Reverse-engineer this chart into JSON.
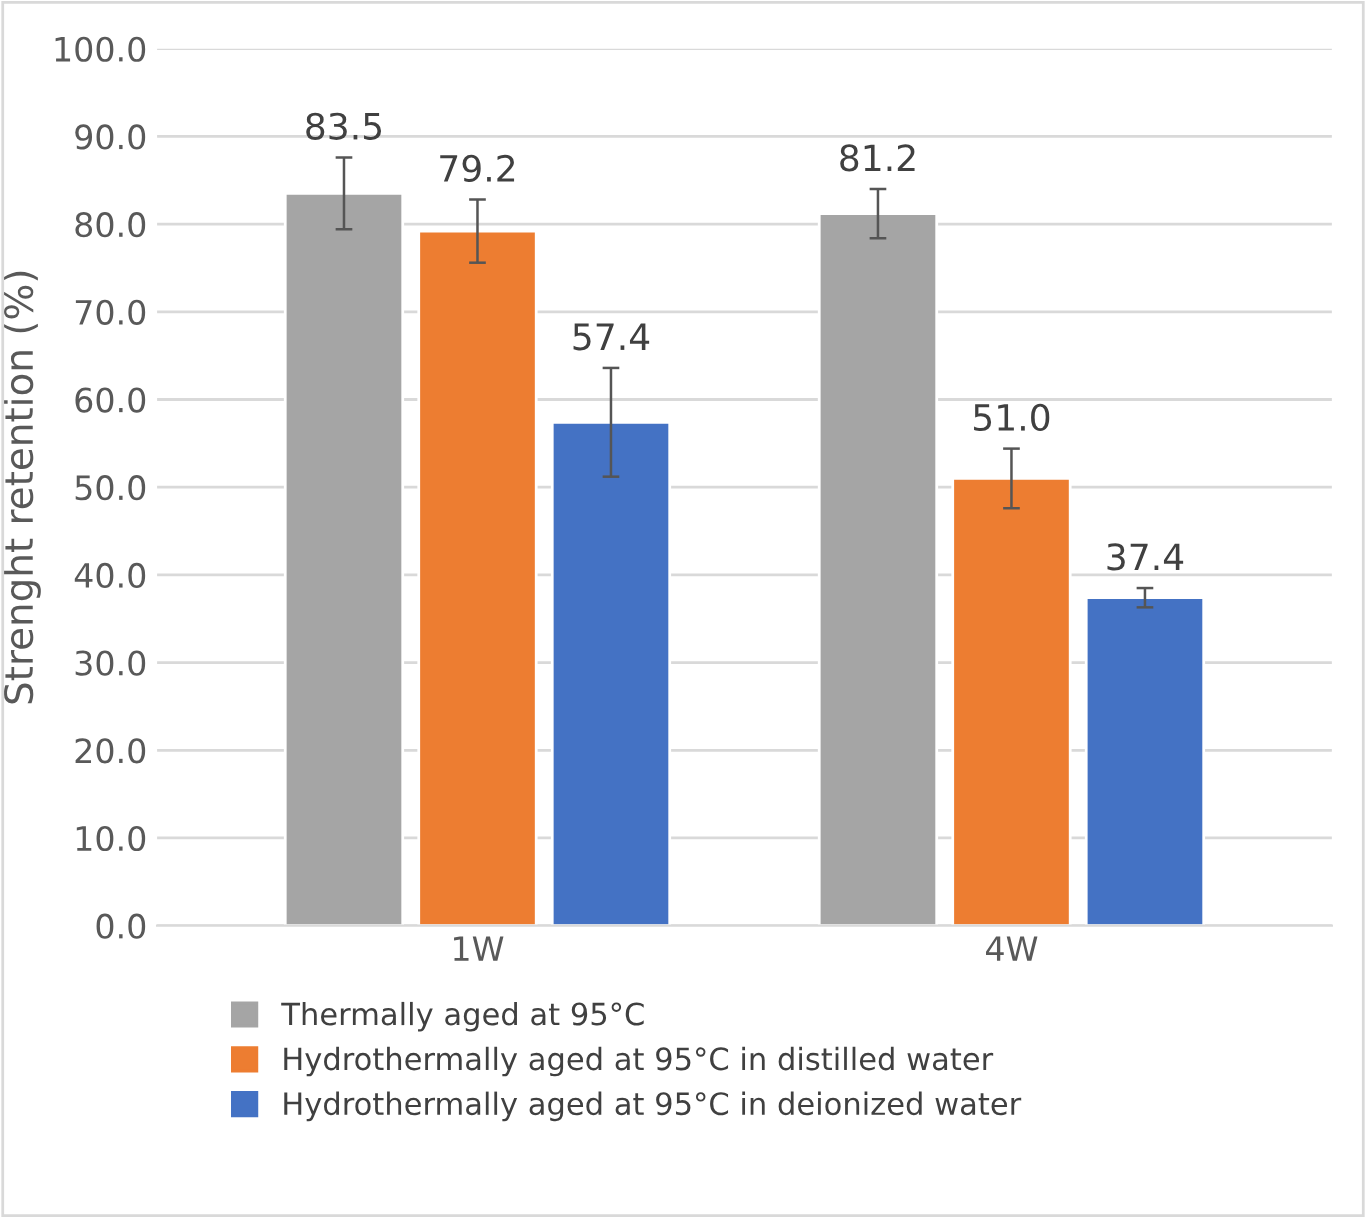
{
  "chart_data": {
    "type": "bar",
    "ylabel": "Strenght retention (%)",
    "categories": [
      "1W",
      "4W"
    ],
    "series": [
      {
        "name": "Thermally aged at 95°C",
        "color": "#a5a5a5",
        "values": [
          83.5,
          81.2
        ],
        "errors": [
          4.1,
          2.8
        ]
      },
      {
        "name": "Hydrothermally aged at 95°C in distilled water",
        "color": "#ed7d31",
        "values": [
          79.2,
          51.0
        ],
        "errors": [
          3.6,
          3.4
        ]
      },
      {
        "name": "Hydrothermally aged at 95°C in deionized water",
        "color": "#4472c4",
        "values": [
          57.4,
          37.4
        ],
        "errors": [
          6.2,
          1.1
        ]
      }
    ],
    "ylim": [
      0,
      100
    ],
    "yticks": [
      {
        "value": 0,
        "label": "0.0"
      },
      {
        "value": 10,
        "label": "10.0"
      },
      {
        "value": 20,
        "label": "20.0"
      },
      {
        "value": 30,
        "label": "30.0"
      },
      {
        "value": 40,
        "label": "40.0"
      },
      {
        "value": 50,
        "label": "50.0"
      },
      {
        "value": 60,
        "label": "60.0"
      },
      {
        "value": 70,
        "label": "70.0"
      },
      {
        "value": 80,
        "label": "80.0"
      },
      {
        "value": 90,
        "label": "90.0"
      },
      {
        "value": 100,
        "label": "100.0"
      }
    ],
    "grid": "y",
    "legend": "bottom",
    "value_labels": [
      [
        "83.5",
        "81.2"
      ],
      [
        "79.2",
        "51.0"
      ],
      [
        "57.4",
        "37.4"
      ]
    ]
  }
}
